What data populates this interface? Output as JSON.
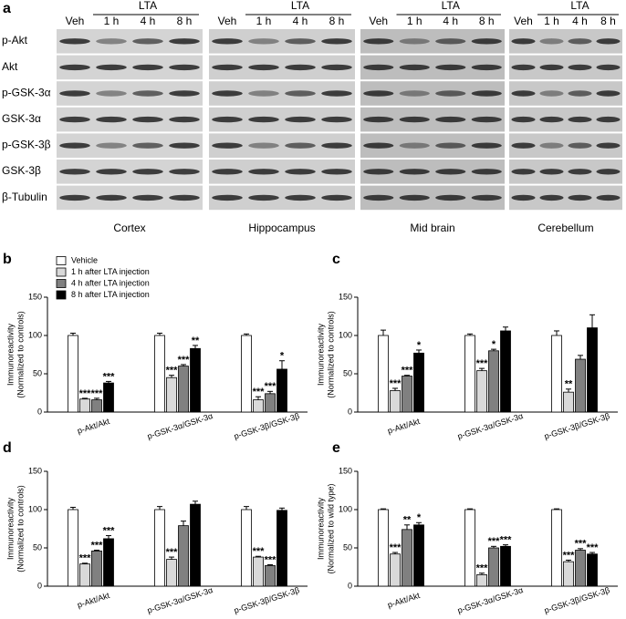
{
  "blot_panel": {
    "letter": "a",
    "rows": [
      "p-Akt",
      "Akt",
      "p-GSK-3α",
      "GSK-3α",
      "p-GSK-3β",
      "GSK-3β",
      "β-Tubulin"
    ],
    "groups": [
      {
        "treatment": "LTA",
        "lanes": [
          "Veh",
          "1 h",
          "4 h",
          "8 h"
        ],
        "region": "Cortex"
      },
      {
        "treatment": "LTA",
        "lanes": [
          "Veh",
          "1 h",
          "4 h",
          "8 h"
        ],
        "region": "Hippocampus"
      },
      {
        "treatment": "LTA",
        "lanes": [
          "Veh",
          "1 h",
          "4 h",
          "8 h"
        ],
        "region": "Mid brain"
      },
      {
        "treatment": "LTA",
        "lanes": [
          "Veh",
          "1 h",
          "4 h",
          "8 h"
        ],
        "region": "Cerebellum"
      }
    ]
  },
  "chart_data": [
    {
      "type": "bar",
      "panel_letter": "b",
      "y_label": "Immunoreactivity",
      "y_label_sub": "(Normalized to controls)",
      "categories": [
        "p-Akt/Akt",
        "p-GSK-3α/GSK-3α",
        "p-GSK-3β/GSK-3β"
      ],
      "ylim": [
        0,
        150
      ],
      "yticks": [
        0,
        50,
        100,
        150
      ],
      "series": [
        {
          "name": "Vehicle",
          "color": "#ffffff",
          "values": [
            100,
            100,
            100
          ],
          "errors": [
            3,
            3,
            2
          ],
          "annotations": [
            null,
            null,
            null
          ]
        },
        {
          "name": "1 h after LTA injection",
          "color": "#d9d9d9",
          "values": [
            17,
            45,
            16
          ],
          "errors": [
            1,
            3,
            4
          ],
          "annotations": [
            "***",
            "***",
            "***"
          ]
        },
        {
          "name": "4 h after LTA injection",
          "color": "#808080",
          "values": [
            16,
            60,
            24
          ],
          "errors": [
            2,
            2,
            3
          ],
          "annotations": [
            "***",
            "***",
            "***"
          ]
        },
        {
          "name": "8 h after LTA injection",
          "color": "#000000",
          "values": [
            38,
            83,
            56
          ],
          "errors": [
            2,
            4,
            11
          ],
          "annotations": [
            "***",
            "**",
            "*"
          ]
        }
      ]
    },
    {
      "type": "bar",
      "panel_letter": "c",
      "y_label": "Immunoreactivity",
      "y_label_sub": "(Normalized to controls)",
      "categories": [
        "p-Akt/Akt",
        "p-GSK-3α/GSK-3α",
        "p-GSK-3β/GSK-3β"
      ],
      "ylim": [
        0,
        150
      ],
      "yticks": [
        0,
        50,
        100,
        150
      ],
      "series": [
        {
          "color": "#ffffff",
          "values": [
            100,
            100,
            100
          ],
          "errors": [
            7,
            2,
            6
          ],
          "annotations": [
            null,
            null,
            null
          ]
        },
        {
          "color": "#d9d9d9",
          "values": [
            28,
            54,
            26
          ],
          "errors": [
            3,
            3,
            4
          ],
          "annotations": [
            "***",
            "***",
            "**"
          ]
        },
        {
          "color": "#808080",
          "values": [
            47,
            80,
            69
          ],
          "errors": [
            1,
            2,
            5
          ],
          "annotations": [
            "***",
            "*",
            null
          ]
        },
        {
          "color": "#000000",
          "values": [
            77,
            106,
            110
          ],
          "errors": [
            4,
            5,
            17
          ],
          "annotations": [
            "*",
            null,
            null
          ]
        }
      ]
    },
    {
      "type": "bar",
      "panel_letter": "d",
      "y_label": "Immunoreactivity",
      "y_label_sub": "(Normalized to controls)",
      "categories": [
        "p-Akt/Akt",
        "p-GSK-3α/GSK-3α",
        "p-GSK-3β/GSK-3β"
      ],
      "ylim": [
        0,
        150
      ],
      "yticks": [
        0,
        50,
        100,
        150
      ],
      "series": [
        {
          "color": "#ffffff",
          "values": [
            100,
            100,
            100
          ],
          "errors": [
            3,
            4,
            4
          ],
          "annotations": [
            null,
            null,
            null
          ]
        },
        {
          "color": "#d9d9d9",
          "values": [
            29,
            35,
            38
          ],
          "errors": [
            1,
            3,
            1
          ],
          "annotations": [
            "***",
            "***",
            "***"
          ]
        },
        {
          "color": "#808080",
          "values": [
            46,
            79,
            27
          ],
          "errors": [
            1,
            6,
            1
          ],
          "annotations": [
            "***",
            null,
            "***"
          ]
        },
        {
          "color": "#000000",
          "values": [
            62,
            107,
            99
          ],
          "errors": [
            4,
            4,
            3
          ],
          "annotations": [
            "***",
            null,
            null
          ]
        }
      ]
    },
    {
      "type": "bar",
      "panel_letter": "e",
      "y_label": "Immunoreactivity",
      "y_label_sub": "(Normalized to wild type)",
      "categories": [
        "p-Akt/Akt",
        "p-GSK-3α/GSK-3α",
        "p-GSK-3β/GSK-3β"
      ],
      "ylim": [
        0,
        150
      ],
      "yticks": [
        0,
        50,
        100,
        150
      ],
      "series": [
        {
          "color": "#ffffff",
          "values": [
            100,
            100,
            100
          ],
          "errors": [
            1,
            1,
            1
          ],
          "annotations": [
            null,
            null,
            null
          ]
        },
        {
          "color": "#d9d9d9",
          "values": [
            42,
            15,
            32
          ],
          "errors": [
            2,
            2,
            2
          ],
          "annotations": [
            "***",
            "***",
            "***"
          ]
        },
        {
          "color": "#808080",
          "values": [
            74,
            50,
            47
          ],
          "errors": [
            6,
            2,
            2
          ],
          "annotations": [
            "**",
            "***",
            "***"
          ]
        },
        {
          "color": "#000000",
          "values": [
            80,
            52,
            42
          ],
          "errors": [
            3,
            2,
            2
          ],
          "annotations": [
            "*",
            "***",
            "***"
          ]
        }
      ]
    }
  ]
}
